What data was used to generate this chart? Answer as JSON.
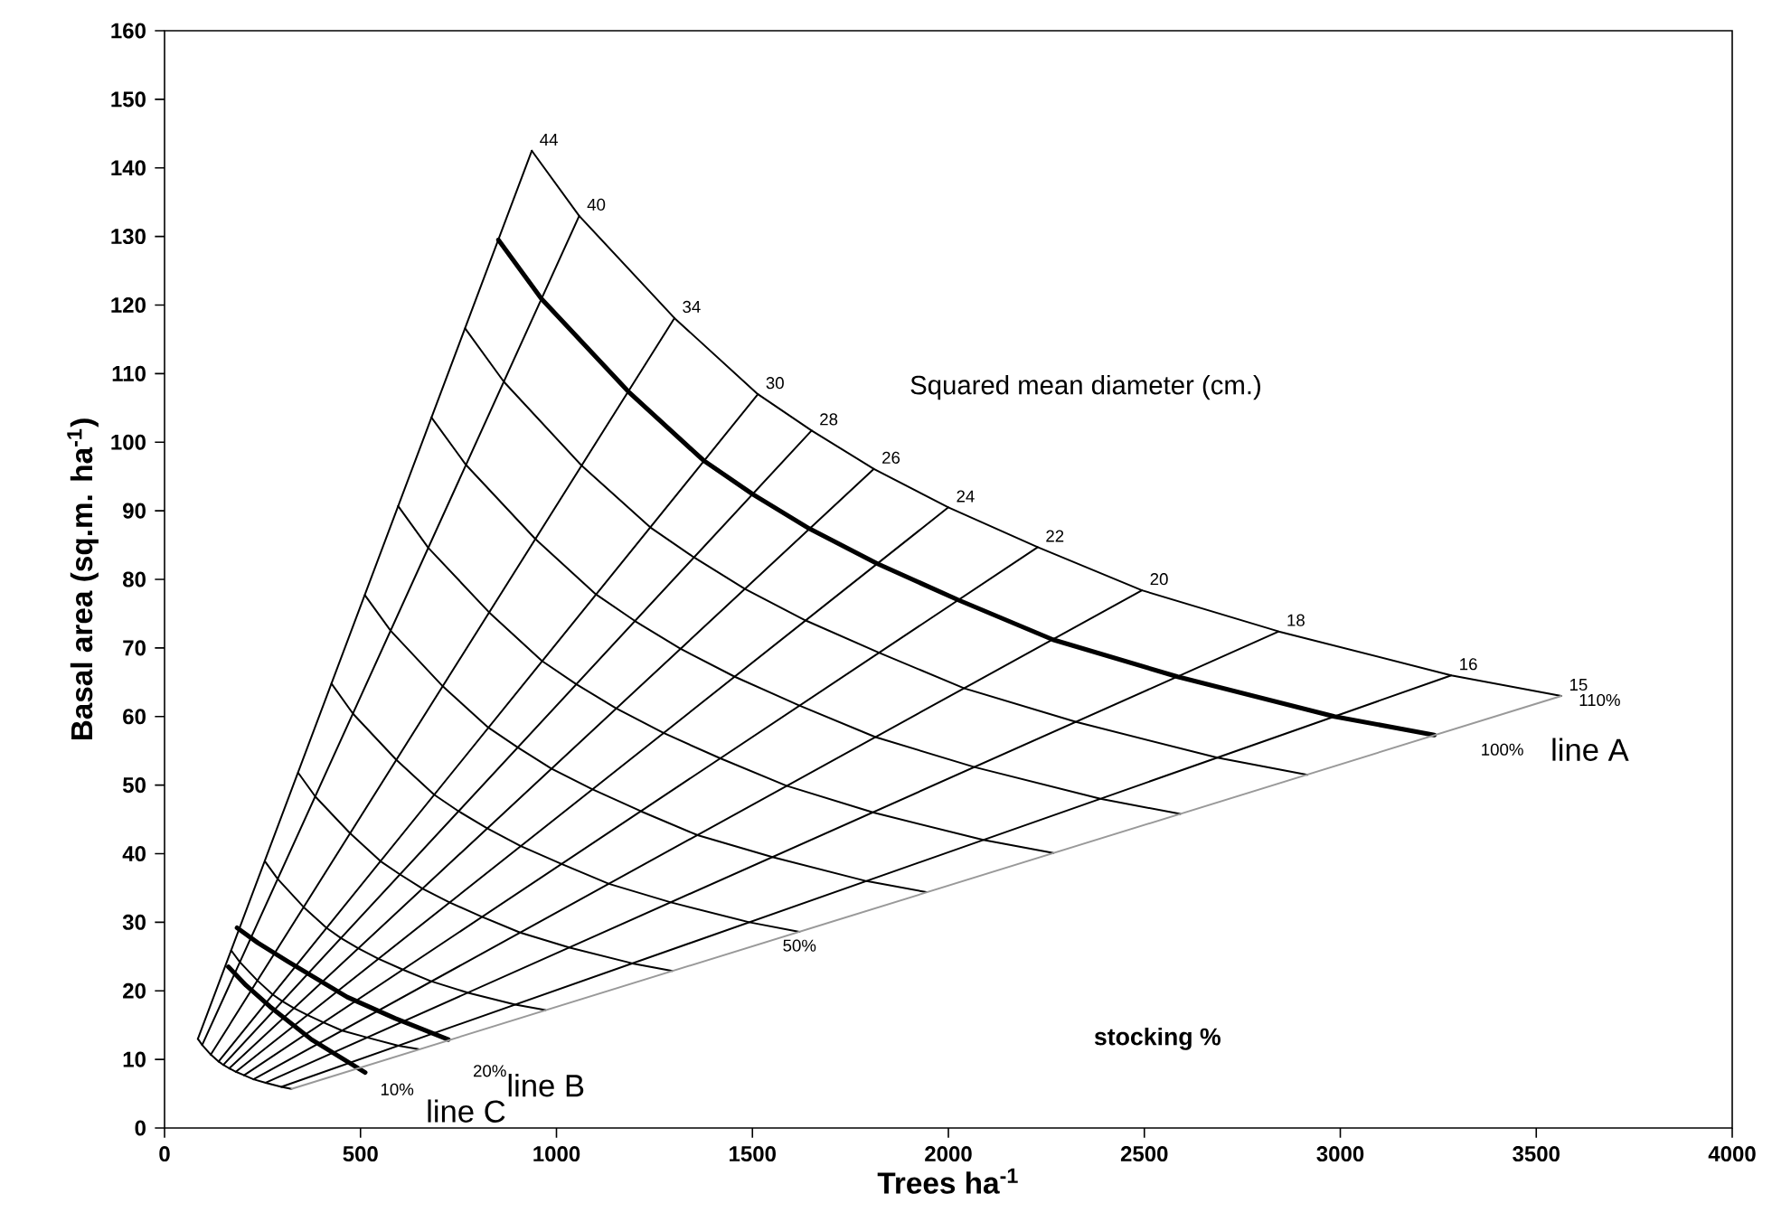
{
  "chart_data": {
    "type": "line",
    "xlabel": "Trees ha$^{-1}$",
    "ylabel": "Basal area (sq.m. ha$^{-1}$)",
    "xlim": [
      0,
      4000
    ],
    "ylim": [
      0,
      160
    ],
    "xticks": [
      0,
      500,
      1000,
      1500,
      2000,
      2500,
      3000,
      3500,
      4000
    ],
    "yticks": [
      0,
      10,
      20,
      30,
      40,
      50,
      60,
      70,
      80,
      90,
      100,
      110,
      120,
      130,
      140,
      150,
      160
    ],
    "series": [
      {
        "color": "#000000",
        "x": [
          85,
          96,
          118,
          138,
          150,
          165,
          182,
          203,
          227,
          258,
          298,
          324
        ],
        "values": [
          13.0,
          12.1,
          10.7,
          9.7,
          9.2,
          8.7,
          8.2,
          7.7,
          7.1,
          6.6,
          6.0,
          5.7
        ]
      },
      {
        "color": "#000000",
        "x": [
          170,
          192,
          237,
          275,
          300,
          329,
          364,
          405,
          453,
          517,
          597,
          648
        ],
        "values": [
          25.9,
          24.2,
          21.5,
          19.5,
          18.5,
          17.5,
          16.5,
          15.4,
          14.2,
          13.2,
          12.0,
          11.5
        ]
      },
      {
        "color": "#000000",
        "x": [
          256,
          289,
          355,
          413,
          450,
          494,
          545,
          608,
          680,
          775,
          895,
          972
        ],
        "values": [
          38.9,
          36.3,
          32.2,
          29.2,
          27.7,
          26.2,
          24.7,
          23.1,
          21.4,
          19.7,
          18.0,
          17.2
        ]
      },
      {
        "color": "#000000",
        "x": [
          341,
          385,
          473,
          551,
          600,
          658,
          727,
          810,
          907,
          1034,
          1194,
          1296
        ],
        "values": [
          51.8,
          48.3,
          43.0,
          38.9,
          37.0,
          34.9,
          32.9,
          30.8,
          28.5,
          26.3,
          24.0,
          22.9
        ]
      },
      {
        "color": "#000000",
        "x": [
          426,
          481,
          591,
          688,
          750,
          823,
          909,
          1013,
          1134,
          1292,
          1492,
          1620
        ],
        "values": [
          64.8,
          60.4,
          53.7,
          48.6,
          46.2,
          43.7,
          41.1,
          38.5,
          35.6,
          32.9,
          30.0,
          28.6
        ]
      },
      {
        "color": "#000000",
        "x": [
          511,
          577,
          710,
          826,
          901,
          987,
          1091,
          1215,
          1360,
          1551,
          1791,
          1944
        ],
        "values": [
          77.7,
          72.5,
          64.4,
          58.4,
          55.5,
          52.4,
          49.4,
          46.2,
          42.7,
          39.5,
          36.0,
          34.4
        ]
      },
      {
        "color": "#000000",
        "x": [
          596,
          673,
          828,
          963,
          1051,
          1152,
          1273,
          1418,
          1587,
          1809,
          2089,
          2268
        ],
        "values": [
          90.7,
          84.6,
          75.2,
          68.1,
          64.7,
          61.2,
          57.6,
          53.9,
          49.9,
          46.0,
          42.0,
          40.1
        ]
      },
      {
        "color": "#000000",
        "x": [
          681,
          769,
          946,
          1101,
          1201,
          1316,
          1455,
          1620,
          1814,
          2068,
          2388,
          2592
        ],
        "values": [
          103.6,
          96.7,
          85.9,
          77.8,
          73.9,
          69.9,
          65.8,
          61.6,
          57.0,
          52.6,
          48.0,
          45.8
        ]
      },
      {
        "color": "#000000",
        "x": [
          767,
          866,
          1064,
          1239,
          1351,
          1481,
          1636,
          1823,
          2041,
          2326,
          2686,
          2916
        ],
        "values": [
          116.6,
          108.8,
          96.6,
          87.6,
          83.2,
          78.6,
          74.0,
          69.3,
          64.1,
          59.2,
          54.0,
          51.5
        ]
      },
      {
        "name": "line A",
        "color": "#000000",
        "x": [
          852,
          962,
          1183,
          1376,
          1501,
          1645,
          1818,
          2025,
          2267,
          2585,
          2985,
          3240
        ],
        "values": [
          129.5,
          120.9,
          107.4,
          97.3,
          92.4,
          87.4,
          82.3,
          77.0,
          71.2,
          65.8,
          60.0,
          57.3
        ]
      },
      {
        "color": "#000000",
        "x": [
          937,
          1058,
          1301,
          1514,
          1651,
          1810,
          2000,
          2228,
          2494,
          2843,
          3283,
          3564
        ],
        "values": [
          142.5,
          133.0,
          118.1,
          107.0,
          101.7,
          96.1,
          90.5,
          84.7,
          78.4,
          72.4,
          66.0,
          63.0
        ]
      },
      {
        "name": "line B",
        "color": "#000000",
        "x": [
          185,
          238,
          314,
          466,
          588,
          724
        ],
        "values": [
          29.2,
          27.0,
          24.3,
          19.1,
          16.0,
          12.9
        ]
      },
      {
        "name": "line C",
        "color": "#000000",
        "x": [
          163,
          208,
          269,
          375,
          512
        ],
        "values": [
          23.5,
          20.8,
          17.7,
          12.9,
          8.1
        ]
      },
      {
        "color": "#000000",
        "x": [
          85,
          937
        ],
        "values": [
          13.0,
          142.5
        ]
      },
      {
        "color": "#000000",
        "x": [
          96,
          1058
        ],
        "values": [
          12.1,
          133.0
        ]
      },
      {
        "color": "#000000",
        "x": [
          118,
          1301
        ],
        "values": [
          10.7,
          118.1
        ]
      },
      {
        "color": "#000000",
        "x": [
          138,
          1514
        ],
        "values": [
          9.7,
          107.0
        ]
      },
      {
        "color": "#000000",
        "x": [
          150,
          1651
        ],
        "values": [
          9.2,
          101.7
        ]
      },
      {
        "color": "#000000",
        "x": [
          165,
          1810
        ],
        "values": [
          8.7,
          96.1
        ]
      },
      {
        "color": "#000000",
        "x": [
          182,
          2000
        ],
        "values": [
          8.2,
          90.5
        ]
      },
      {
        "color": "#000000",
        "x": [
          203,
          2228
        ],
        "values": [
          7.7,
          84.7
        ]
      },
      {
        "color": "#000000",
        "x": [
          227,
          2494
        ],
        "values": [
          7.1,
          78.4
        ]
      },
      {
        "color": "#000000",
        "x": [
          258,
          2843
        ],
        "values": [
          6.6,
          72.4
        ]
      },
      {
        "color": "#000000",
        "x": [
          298,
          3283
        ],
        "values": [
          6.0,
          66.0
        ]
      },
      {
        "color": "#999999",
        "x": [
          324,
          3564
        ],
        "values": [
          5.7,
          63.0
        ]
      }
    ],
    "annotations": [
      "Squared mean diameter (cm.)",
      "stocking %",
      {
        "text": "44",
        "x": 937,
        "y": 142.5
      },
      {
        "text": "40",
        "x": 1058,
        "y": 133.0
      },
      {
        "text": "34",
        "x": 1301,
        "y": 118.1
      },
      {
        "text": "30",
        "x": 1514,
        "y": 107.0
      },
      {
        "text": "28",
        "x": 1651,
        "y": 101.7
      },
      {
        "text": "26",
        "x": 1810,
        "y": 96.1
      },
      {
        "text": "24",
        "x": 2000,
        "y": 90.5
      },
      {
        "text": "22",
        "x": 2228,
        "y": 84.7
      },
      {
        "text": "20",
        "x": 2494,
        "y": 78.4
      },
      {
        "text": "18",
        "x": 2843,
        "y": 72.4
      },
      {
        "text": "16",
        "x": 3283,
        "y": 66.0
      },
      {
        "text": "15",
        "x": 3564,
        "y": 63.0
      },
      {
        "text": "110%",
        "x": 3564,
        "y": 63.0
      },
      {
        "text": "100%",
        "x": 3240,
        "y": 57.3
      },
      {
        "text": "50%",
        "x": 1620,
        "y": 28.6
      },
      {
        "text": "20%",
        "x": 724,
        "y": 12.9
      },
      {
        "text": "10%",
        "x": 512,
        "y": 8.1
      }
    ]
  }
}
